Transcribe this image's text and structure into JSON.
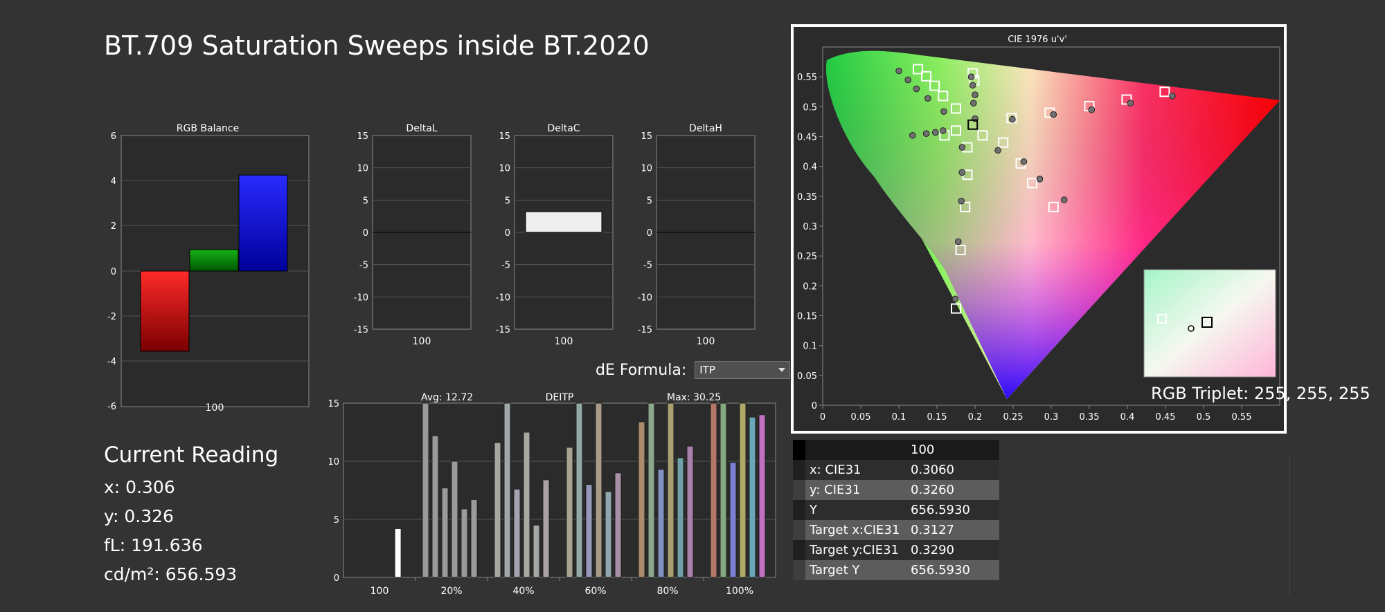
{
  "page_title": "BT.709 Saturation Sweeps inside BT.2020",
  "colors": {
    "background": "#333333",
    "red": "#ff0000",
    "green": "#00a000",
    "blue": "#0000ff",
    "plot_bg": "#2b2b2b"
  },
  "rgb_balance": {
    "title": "RGB Balance",
    "x_label": "100",
    "y_ticks": [
      "6",
      "4",
      "2",
      "0",
      "-2",
      "-4",
      "-6"
    ],
    "ylim": [
      -6,
      6
    ],
    "values": {
      "red": -3.55,
      "green": 0.95,
      "blue": 4.25
    }
  },
  "delta_charts": [
    {
      "title": "DeltaL",
      "x_label": "100",
      "value": 0,
      "y_ticks": [
        "15",
        "10",
        "5",
        "0",
        "-5",
        "-10",
        "-15"
      ]
    },
    {
      "title": "DeltaC",
      "x_label": "100",
      "value": 3.2,
      "y_ticks": [
        "15",
        "10",
        "5",
        "0",
        "-5",
        "-10",
        "-15"
      ]
    },
    {
      "title": "DeltaH",
      "x_label": "100",
      "value": 0,
      "y_ticks": [
        "15",
        "10",
        "5",
        "0",
        "-5",
        "-10",
        "-15"
      ]
    }
  ],
  "de_formula": {
    "label": "dE Formula:",
    "value": "ITP"
  },
  "deitp_chart": {
    "title": "DEITP",
    "avg_label": "Avg: 12.72",
    "max_label": "Max: 30.25",
    "y_ticks": [
      "15",
      "10",
      "5",
      "0"
    ],
    "ylim": [
      0,
      15
    ],
    "groups": [
      "100",
      "20%",
      "40%",
      "60%",
      "80%",
      "100%"
    ],
    "values": [
      [
        4.2
      ],
      [
        15,
        12.2,
        7.7,
        10,
        5.9,
        6.7
      ],
      [
        11.6,
        15,
        7.6,
        12.5,
        4.5,
        8.4
      ],
      [
        11.2,
        15,
        8,
        15,
        7.4,
        9
      ],
      [
        13.4,
        15,
        9.3,
        15,
        10.3,
        11.3
      ],
      [
        15,
        15,
        9.9,
        15,
        13.8,
        14
      ]
    ]
  },
  "cie_chart": {
    "title": "CIE 1976 u'v'",
    "x_ticks": [
      "0",
      "0.05",
      "0.1",
      "0.15",
      "0.2",
      "0.25",
      "0.3",
      "0.35",
      "0.4",
      "0.45",
      "0.5",
      "0.55"
    ],
    "y_ticks": [
      "0.55",
      "0.5",
      "0.45",
      "0.4",
      "0.35",
      "0.3",
      "0.25",
      "0.2",
      "0.15",
      "0.1",
      "0.05",
      "0"
    ],
    "rgb_triplet": "RGB Triplet: 255, 255, 255"
  },
  "reading": {
    "title": "Current Reading",
    "lines": [
      "x: 0.306",
      "y: 0.326",
      "fL: 191.636",
      "cd/m²: 656.593"
    ]
  },
  "table": {
    "header": "100",
    "rows": [
      {
        "label": "x: CIE31",
        "value": "0.3060"
      },
      {
        "label": "y: CIE31",
        "value": "0.3260"
      },
      {
        "label": "Y",
        "value": "656.5930"
      },
      {
        "label": "Target x:CIE31",
        "value": "0.3127"
      },
      {
        "label": "Target y:CIE31",
        "value": "0.3290"
      },
      {
        "label": "Target Y",
        "value": "656.5930"
      }
    ]
  }
}
